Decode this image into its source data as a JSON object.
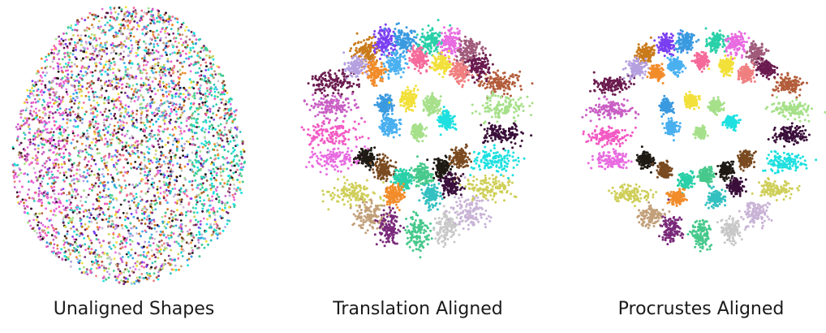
{
  "panels": [
    {
      "id": "unaligned",
      "caption": "Unaligned Shapes"
    },
    {
      "id": "translation",
      "caption": "Translation Aligned"
    },
    {
      "id": "procrustes",
      "caption": "Procrustes Aligned"
    }
  ],
  "palette": [
    "#6b1b4f",
    "#c95fc4",
    "#f25ac4",
    "#e86be0",
    "#1f1a14",
    "#cfcf5a",
    "#c2a07a",
    "#7a2a7a",
    "#47c98c",
    "#c8c8c8",
    "#c9b3d6",
    "#b35c3a",
    "#a6e08a",
    "#3a0f3a",
    "#1ee0e0",
    "#c97a1a",
    "#7b3ff2",
    "#3a9ae0",
    "#f28c2a",
    "#f2e03a",
    "#2ad0a8",
    "#a05a7a",
    "#b5a0e0",
    "#f56a9a",
    "#4ab0f0",
    "#f08080",
    "#34c0c0",
    "#7a4a20"
  ]
}
